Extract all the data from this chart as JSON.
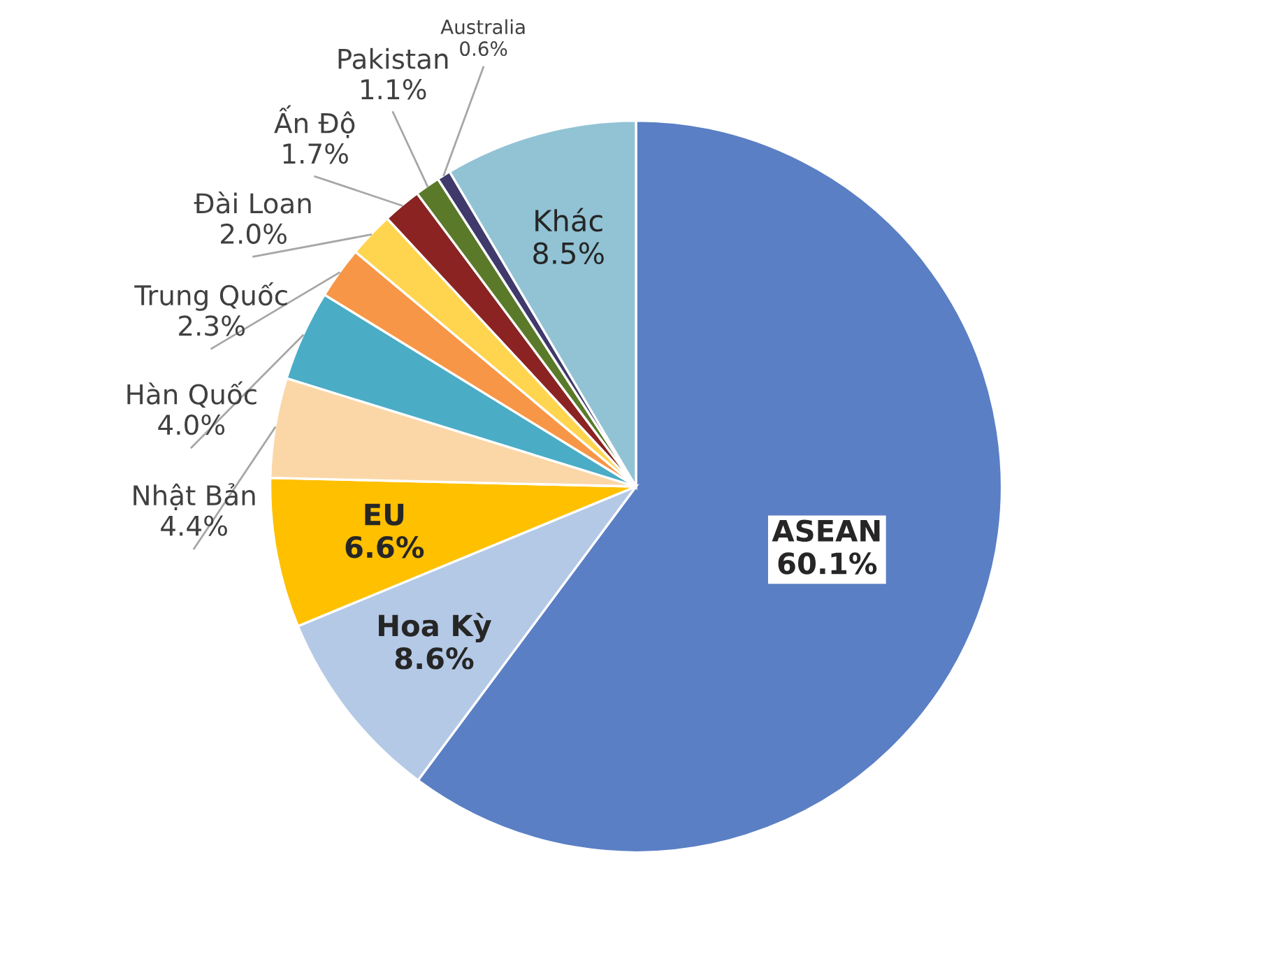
{
  "chart_data": {
    "type": "pie",
    "categories": [
      "ASEAN",
      "Hoa Kỳ",
      "EU",
      "Nhật Bản",
      "Hàn Quốc",
      "Trung Quốc",
      "Đài Loan",
      "Ấn Độ",
      "Pakistan",
      "Australia",
      "Khác"
    ],
    "values": [
      60.1,
      8.6,
      6.6,
      4.4,
      4.0,
      2.3,
      2.0,
      1.7,
      1.1,
      0.6,
      8.5
    ],
    "colors": [
      "#5b7fc4",
      "#b4c9e6",
      "#ffc000",
      "#fbd7a8",
      "#4bacc6",
      "#f79646",
      "#ffd54f",
      "#8b2323",
      "#5a7a2a",
      "#3f3a6b",
      "#92c3d5"
    ],
    "value_labels": [
      "60.1%",
      "8.6%",
      "6.6%",
      "4.4%",
      "4.0%",
      "2.3%",
      "2.0%",
      "1.7%",
      "1.1%",
      "0.6%",
      "8.5%"
    ],
    "legend": false
  }
}
